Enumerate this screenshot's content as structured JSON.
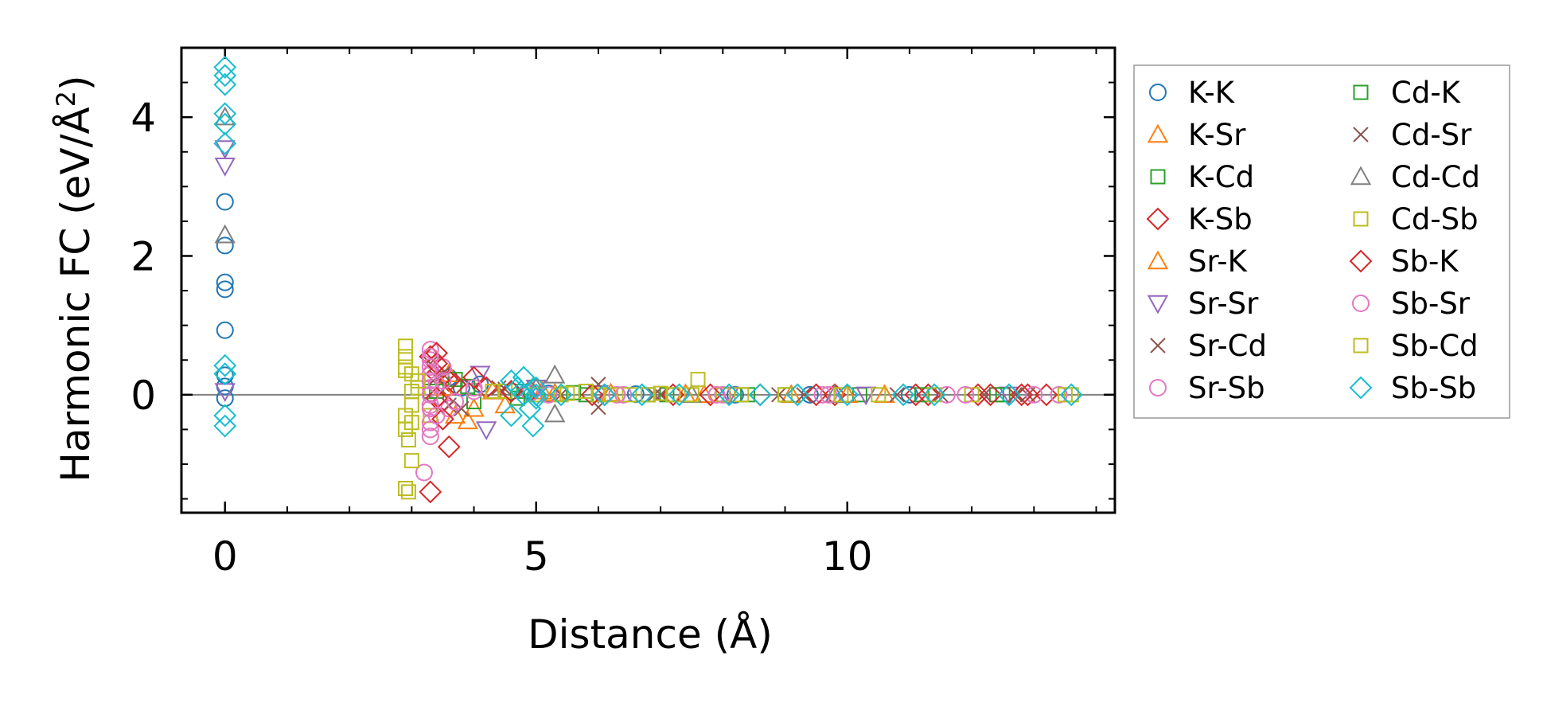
{
  "chart_data": {
    "type": "scatter",
    "title": "",
    "xlabel": "Distance (Å)",
    "ylabel_main": "Harmonic FC (eV/Å",
    "ylabel_sup": "2",
    "ylabel_end": ")",
    "xlim": [
      -0.7,
      14.3
    ],
    "ylim": [
      -1.7,
      5.0
    ],
    "xticks": [
      0,
      5,
      10
    ],
    "xtick_labels": [
      "0",
      "5",
      "10"
    ],
    "yticks": [
      0,
      2,
      4
    ],
    "ytick_labels": [
      "0",
      "2",
      "4"
    ],
    "x_minor_step": 1,
    "y_minor_step": 0.5,
    "zero_line": 0,
    "grid": false,
    "legend_position": "outside-right",
    "legend_columns": 2,
    "series": [
      {
        "name": "K-K",
        "marker": "circle",
        "color": "#1f77b4",
        "points": [
          [
            0,
            2.78
          ],
          [
            0,
            2.15
          ],
          [
            0,
            1.62
          ],
          [
            0,
            1.52
          ],
          [
            0,
            0.93
          ],
          [
            0,
            0.28
          ],
          [
            0,
            0.12
          ],
          [
            0,
            -0.05
          ],
          [
            3.3,
            0.2
          ],
          [
            3.6,
            0.25
          ],
          [
            3.8,
            0.1
          ],
          [
            4.1,
            0.15
          ],
          [
            4.6,
            0.05
          ],
          [
            5.2,
            0.02
          ],
          [
            6.6,
            0.01
          ],
          [
            8.2,
            0.0
          ],
          [
            9.4,
            0.0
          ],
          [
            11.0,
            0.0
          ]
        ]
      },
      {
        "name": "K-Sr",
        "marker": "triangle-up",
        "color": "#ff7f0e",
        "points": [
          [
            3.6,
            0.3
          ],
          [
            3.9,
            -0.38
          ],
          [
            4.0,
            -0.2
          ],
          [
            4.5,
            -0.15
          ],
          [
            5.1,
            0.05
          ],
          [
            6.2,
            0.02
          ],
          [
            7.4,
            0.01
          ],
          [
            9.1,
            0.0
          ],
          [
            10.6,
            0.0
          ]
        ]
      },
      {
        "name": "K-Cd",
        "marker": "square",
        "color": "#2ca02c",
        "points": [
          [
            3.3,
            0.05
          ],
          [
            3.7,
            0.22
          ],
          [
            4.0,
            -0.1
          ],
          [
            4.8,
            0.05
          ],
          [
            5.6,
            0.03
          ],
          [
            6.8,
            0.0
          ],
          [
            8.4,
            0.0
          ],
          [
            10.2,
            0.0
          ],
          [
            12.4,
            0.0
          ]
        ]
      },
      {
        "name": "K-Sb",
        "marker": "diamond",
        "color": "#d62728",
        "points": [
          [
            3.3,
            0.55
          ],
          [
            3.4,
            0.3
          ],
          [
            3.5,
            -0.1
          ],
          [
            3.6,
            0.2
          ],
          [
            4.2,
            0.1
          ],
          [
            4.9,
            0.05
          ],
          [
            6.1,
            0.0
          ],
          [
            7.2,
            0.0
          ],
          [
            8.6,
            0.0
          ],
          [
            9.8,
            0.0
          ],
          [
            11.3,
            0.0
          ],
          [
            12.1,
            0.0
          ],
          [
            12.9,
            0.0
          ],
          [
            13.2,
            0.0
          ]
        ]
      },
      {
        "name": "Sr-K",
        "marker": "triangle-up",
        "color": "#ff7f0e",
        "points": [
          [
            3.5,
            0.1
          ],
          [
            3.7,
            -0.3
          ],
          [
            4.3,
            0.05
          ],
          [
            5.3,
            0.02
          ],
          [
            7.7,
            0.0
          ],
          [
            10.0,
            0.0
          ]
        ]
      },
      {
        "name": "Sr-Sr",
        "marker": "triangle-down",
        "color": "#9467bd",
        "points": [
          [
            0,
            3.55
          ],
          [
            0,
            3.3
          ],
          [
            0,
            0.05
          ],
          [
            4.1,
            0.3
          ],
          [
            4.2,
            -0.5
          ],
          [
            5.0,
            0.1
          ],
          [
            6.0,
            0.02
          ],
          [
            8.1,
            0.0
          ],
          [
            10.3,
            0.0
          ],
          [
            12.6,
            0.0
          ]
        ]
      },
      {
        "name": "Sr-Cd",
        "marker": "x",
        "color": "#8c564b",
        "points": [
          [
            3.3,
            0.45
          ],
          [
            3.5,
            0.3
          ],
          [
            3.8,
            -0.2
          ],
          [
            4.4,
            0.1
          ],
          [
            6.0,
            0.15
          ],
          [
            6.0,
            -0.18
          ],
          [
            7.0,
            0.0
          ],
          [
            8.9,
            0.0
          ],
          [
            10.8,
            0.0
          ],
          [
            12.2,
            0.0
          ],
          [
            12.9,
            0.0
          ]
        ]
      },
      {
        "name": "Sr-Sb",
        "marker": "circle",
        "color": "#e377c2",
        "points": [
          [
            3.3,
            0.65
          ],
          [
            3.3,
            0.5
          ],
          [
            3.3,
            0.3
          ],
          [
            3.3,
            0.1
          ],
          [
            3.3,
            -0.15
          ],
          [
            3.3,
            -0.4
          ],
          [
            3.3,
            -0.6
          ],
          [
            3.2,
            -1.12
          ],
          [
            3.5,
            0.4
          ],
          [
            3.6,
            -0.2
          ],
          [
            4.0,
            0.05
          ],
          [
            4.9,
            0.02
          ],
          [
            6.4,
            0.0
          ],
          [
            8.0,
            0.0
          ],
          [
            9.6,
            0.0
          ],
          [
            11.6,
            0.0
          ],
          [
            13.0,
            0.0
          ]
        ]
      },
      {
        "name": "Cd-K",
        "marker": "square",
        "color": "#2ca02c",
        "points": [
          [
            3.4,
            0.05
          ],
          [
            3.9,
            0.12
          ],
          [
            4.7,
            -0.05
          ],
          [
            5.8,
            0.0
          ],
          [
            7.1,
            0.0
          ],
          [
            9.0,
            0.0
          ],
          [
            11.2,
            0.0
          ],
          [
            12.5,
            0.0
          ]
        ]
      },
      {
        "name": "Cd-Sr",
        "marker": "x",
        "color": "#8c564b",
        "points": [
          [
            3.4,
            0.25
          ],
          [
            3.6,
            -0.15
          ],
          [
            4.5,
            0.08
          ],
          [
            5.4,
            0.0
          ],
          [
            6.9,
            0.0
          ],
          [
            9.3,
            0.0
          ],
          [
            11.5,
            0.0
          ],
          [
            12.7,
            0.0
          ]
        ]
      },
      {
        "name": "Cd-Cd",
        "marker": "triangle-up",
        "color": "#7f7f7f",
        "points": [
          [
            0,
            2.3
          ],
          [
            0,
            4.0
          ],
          [
            5.3,
            0.28
          ],
          [
            5.3,
            -0.28
          ],
          [
            5.0,
            0.1
          ],
          [
            7.5,
            0.0
          ],
          [
            9.8,
            0.0
          ]
        ]
      },
      {
        "name": "Cd-Sb",
        "marker": "square",
        "color": "#bcbd22",
        "points": [
          [
            2.9,
            0.7
          ],
          [
            2.9,
            0.55
          ],
          [
            2.9,
            0.35
          ],
          [
            3.0,
            0.3
          ],
          [
            3.0,
            0.05
          ],
          [
            3.0,
            -0.15
          ],
          [
            2.9,
            -0.3
          ],
          [
            2.9,
            -0.5
          ],
          [
            2.95,
            -0.65
          ],
          [
            3.0,
            -0.95
          ],
          [
            2.9,
            -1.35
          ],
          [
            2.95,
            -1.4
          ],
          [
            3.1,
            0.1
          ],
          [
            3.3,
            -0.3
          ],
          [
            4.5,
            0.05
          ],
          [
            5.0,
            0.0
          ],
          [
            5.5,
            0.02
          ],
          [
            6.0,
            0.0
          ],
          [
            6.5,
            0.0
          ],
          [
            7.0,
            0.02
          ],
          [
            7.5,
            0.0
          ],
          [
            7.6,
            0.22
          ],
          [
            8.0,
            0.0
          ],
          [
            9.0,
            0.0
          ],
          [
            10.5,
            0.0
          ],
          [
            12.0,
            0.0
          ],
          [
            13.6,
            0.0
          ]
        ]
      },
      {
        "name": "Sb-K",
        "marker": "diamond",
        "color": "#d62728",
        "points": [
          [
            3.4,
            0.6
          ],
          [
            3.4,
            0.45
          ],
          [
            3.4,
            -0.05
          ],
          [
            3.5,
            -0.35
          ],
          [
            3.6,
            -0.75
          ],
          [
            3.3,
            -1.4
          ],
          [
            3.7,
            0.15
          ],
          [
            4.0,
            0.25
          ],
          [
            4.6,
            0.05
          ],
          [
            5.9,
            0.0
          ],
          [
            7.8,
            0.0
          ],
          [
            9.5,
            0.0
          ],
          [
            11.1,
            0.0
          ],
          [
            12.3,
            0.0
          ],
          [
            12.8,
            0.0
          ]
        ]
      },
      {
        "name": "Sb-Sr",
        "marker": "circle",
        "color": "#e377c2",
        "points": [
          [
            3.3,
            0.55
          ],
          [
            3.3,
            0.4
          ],
          [
            3.3,
            0.2
          ],
          [
            3.3,
            0.0
          ],
          [
            3.3,
            -0.2
          ],
          [
            3.3,
            -0.5
          ],
          [
            3.4,
            0.15
          ],
          [
            3.4,
            -0.3
          ],
          [
            3.5,
            0.2
          ],
          [
            3.7,
            -0.1
          ],
          [
            4.0,
            0.1
          ],
          [
            5.2,
            0.0
          ],
          [
            6.3,
            0.0
          ],
          [
            7.9,
            0.0
          ],
          [
            9.7,
            0.0
          ],
          [
            11.9,
            0.0
          ],
          [
            13.4,
            0.0
          ]
        ]
      },
      {
        "name": "Sb-Cd",
        "marker": "square",
        "color": "#bcbd22",
        "points": [
          [
            2.9,
            0.4
          ],
          [
            3.0,
            -0.4
          ],
          [
            3.1,
            0.2
          ],
          [
            4.3,
            0.05
          ],
          [
            5.4,
            0.0
          ],
          [
            5.8,
            0.05
          ],
          [
            6.2,
            0.0
          ],
          [
            6.8,
            0.0
          ],
          [
            7.2,
            0.0
          ],
          [
            8.3,
            0.0
          ],
          [
            9.9,
            0.0
          ],
          [
            11.4,
            0.0
          ],
          [
            13.5,
            0.0
          ]
        ]
      },
      {
        "name": "Sb-Sb",
        "marker": "diamond",
        "color": "#17becf",
        "points": [
          [
            0,
            4.72
          ],
          [
            0,
            4.6
          ],
          [
            0,
            4.47
          ],
          [
            0,
            4.05
          ],
          [
            0,
            3.9
          ],
          [
            0,
            3.62
          ],
          [
            0,
            0.42
          ],
          [
            0,
            0.3
          ],
          [
            0,
            -0.3
          ],
          [
            0,
            -0.45
          ],
          [
            4.6,
            0.2
          ],
          [
            4.6,
            -0.3
          ],
          [
            4.7,
            0.1
          ],
          [
            4.8,
            0.25
          ],
          [
            4.8,
            0.0
          ],
          [
            4.9,
            -0.2
          ],
          [
            4.95,
            -0.45
          ],
          [
            5.0,
            0.1
          ],
          [
            5.0,
            -0.05
          ],
          [
            5.0,
            0.0
          ],
          [
            5.4,
            0.0
          ],
          [
            6.1,
            0.0
          ],
          [
            6.7,
            0.0
          ],
          [
            7.3,
            0.0
          ],
          [
            8.1,
            0.0
          ],
          [
            8.6,
            0.0
          ],
          [
            9.2,
            0.0
          ],
          [
            10.0,
            0.0
          ],
          [
            10.9,
            0.0
          ],
          [
            11.4,
            0.0
          ],
          [
            12.6,
            0.0
          ],
          [
            13.6,
            0.0
          ]
        ]
      }
    ]
  }
}
